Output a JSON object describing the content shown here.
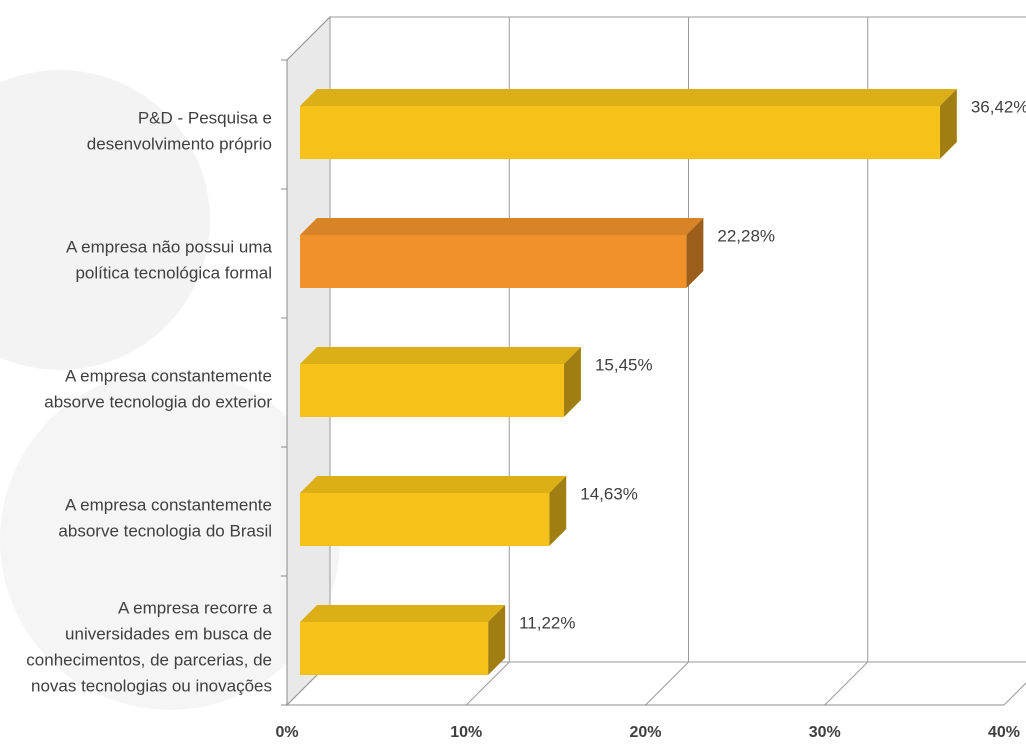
{
  "chart_data": {
    "type": "bar",
    "orientation": "horizontal",
    "style": "3d",
    "categories": [
      [
        "P&D - Pesquisa e",
        "desenvolvimento próprio"
      ],
      [
        "A empresa não possui uma",
        "política tecnológica formal"
      ],
      [
        "A empresa constantemente",
        "absorve tecnologia do exterior"
      ],
      [
        "A empresa constantemente",
        "absorve tecnologia do Brasil"
      ],
      [
        "A empresa recorre a",
        "universidades em busca de",
        "conhecimentos, de parcerias, de",
        "novas tecnologias ou inovações"
      ]
    ],
    "values": [
      36.42,
      22.28,
      15.45,
      14.63,
      11.22
    ],
    "value_labels": [
      "36,42%",
      "22,28%",
      "15,45%",
      "14,63%",
      "11,22%"
    ],
    "bar_colors": [
      "#f6c21a",
      "#f0912a",
      "#f6c21a",
      "#f6c21a",
      "#f6c21a"
    ],
    "xlim": [
      0,
      40
    ],
    "xticks": [
      0,
      10,
      20,
      30,
      40
    ],
    "xtick_labels": [
      "0%",
      "10%",
      "20%",
      "30%",
      "40%"
    ],
    "grid": true,
    "title": "",
    "xlabel": "",
    "ylabel": ""
  }
}
